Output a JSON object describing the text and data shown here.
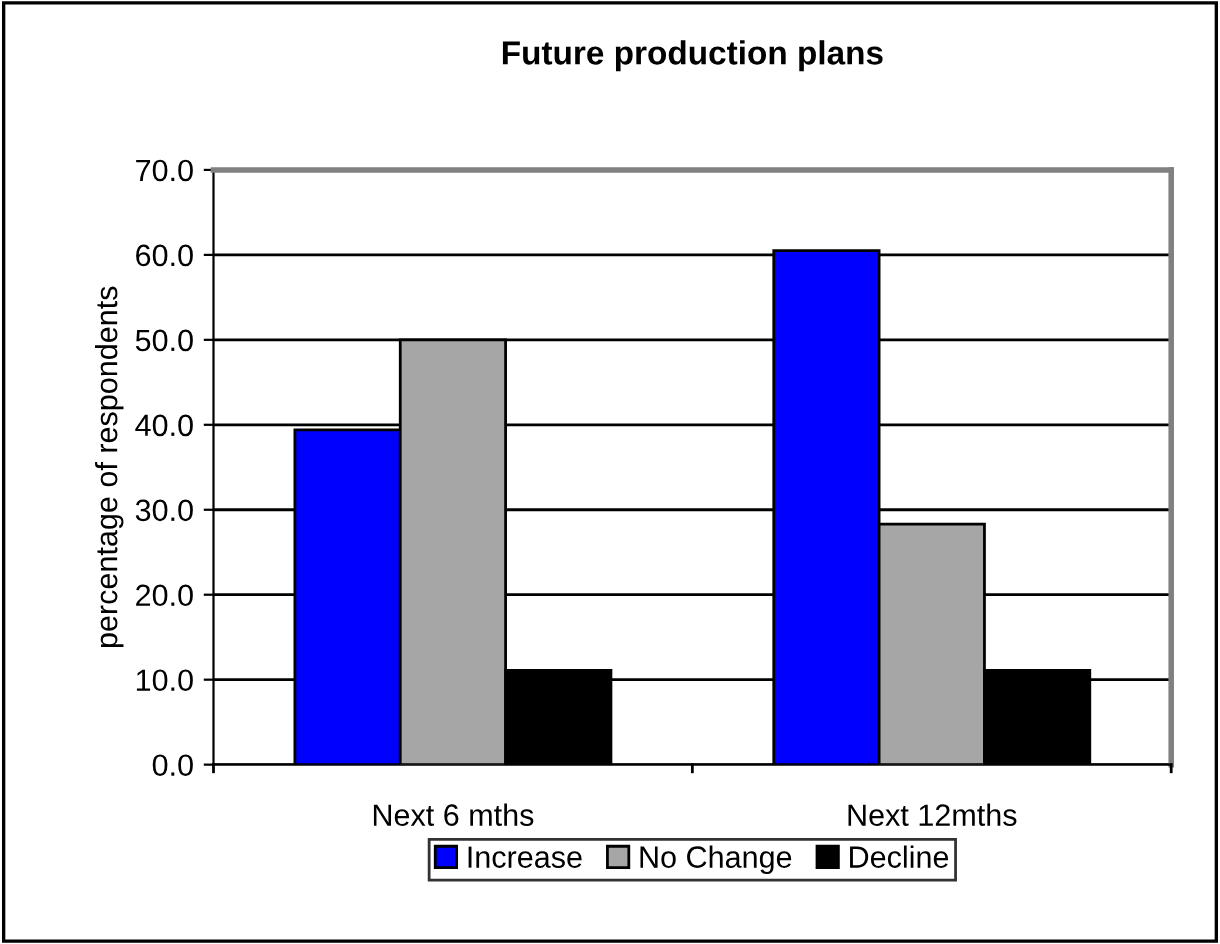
{
  "chart_data": {
    "type": "bar",
    "title": "Future production plans",
    "ylabel": "percentage of respondents",
    "categories": [
      "Next 6 mths",
      "Next 12mths"
    ],
    "series": [
      {
        "name": "Increase",
        "color": "#0000ff",
        "values": [
          39.4,
          60.5
        ]
      },
      {
        "name": "No Change",
        "color": "#a6a6a6",
        "values": [
          50.0,
          28.3
        ]
      },
      {
        "name": "Decline",
        "color": "#000000",
        "values": [
          11.1,
          11.1
        ]
      }
    ],
    "ylim": [
      0,
      70
    ],
    "yticks": [
      {
        "value": 0,
        "label": "0.0"
      },
      {
        "value": 10,
        "label": "10.0"
      },
      {
        "value": 20,
        "label": "20.0"
      },
      {
        "value": 30,
        "label": "30.0"
      },
      {
        "value": 40,
        "label": "40.0"
      },
      {
        "value": 50,
        "label": "50.0"
      },
      {
        "value": 60,
        "label": "60.0"
      },
      {
        "value": 70,
        "label": "70.0"
      }
    ],
    "grid": "y",
    "legend": "bottom"
  }
}
